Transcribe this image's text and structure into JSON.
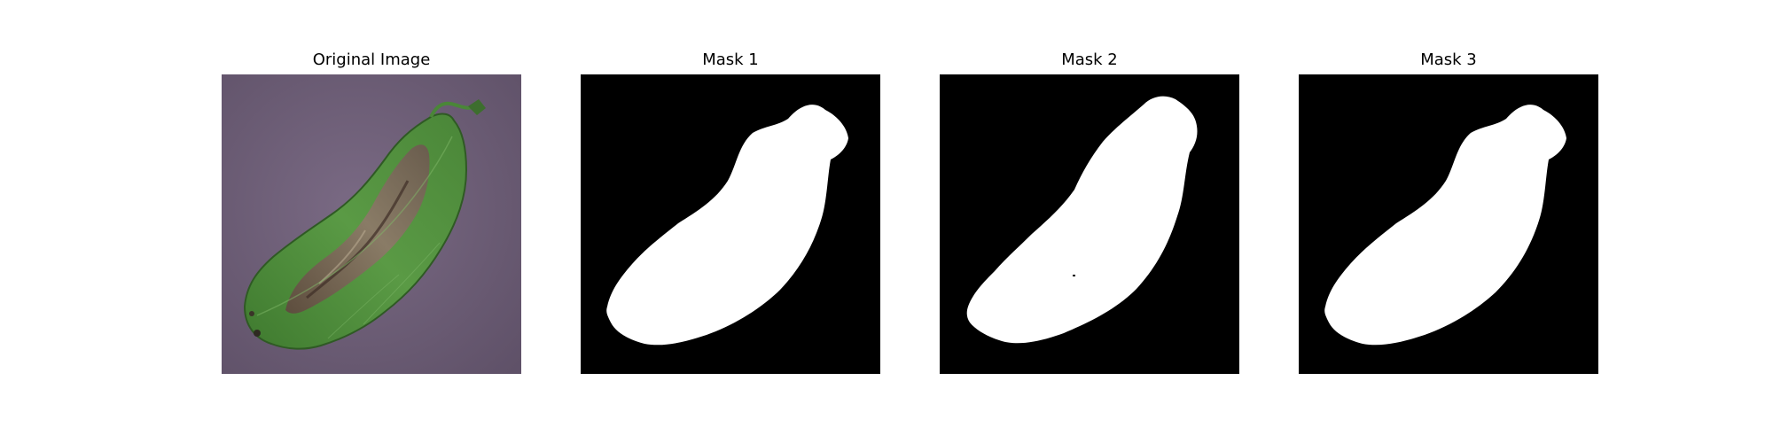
{
  "figure": {
    "panels": [
      {
        "title": "Original Image",
        "image": "potato-leaf-with-blight-lesion-on-purple-background"
      },
      {
        "title": "Mask 1",
        "image": "binary-segmentation-mask-white-leaf-on-black"
      },
      {
        "title": "Mask 2",
        "image": "binary-segmentation-mask-white-leaf-on-black"
      },
      {
        "title": "Mask 3",
        "image": "binary-segmentation-mask-white-leaf-on-black"
      }
    ]
  },
  "colors": {
    "background": "#ffffff",
    "mask_foreground": "#ffffff",
    "mask_background": "#000000",
    "photo_background": "#6f6077",
    "leaf_green": "#4f8a3a",
    "lesion_brown": "#7a6656"
  }
}
